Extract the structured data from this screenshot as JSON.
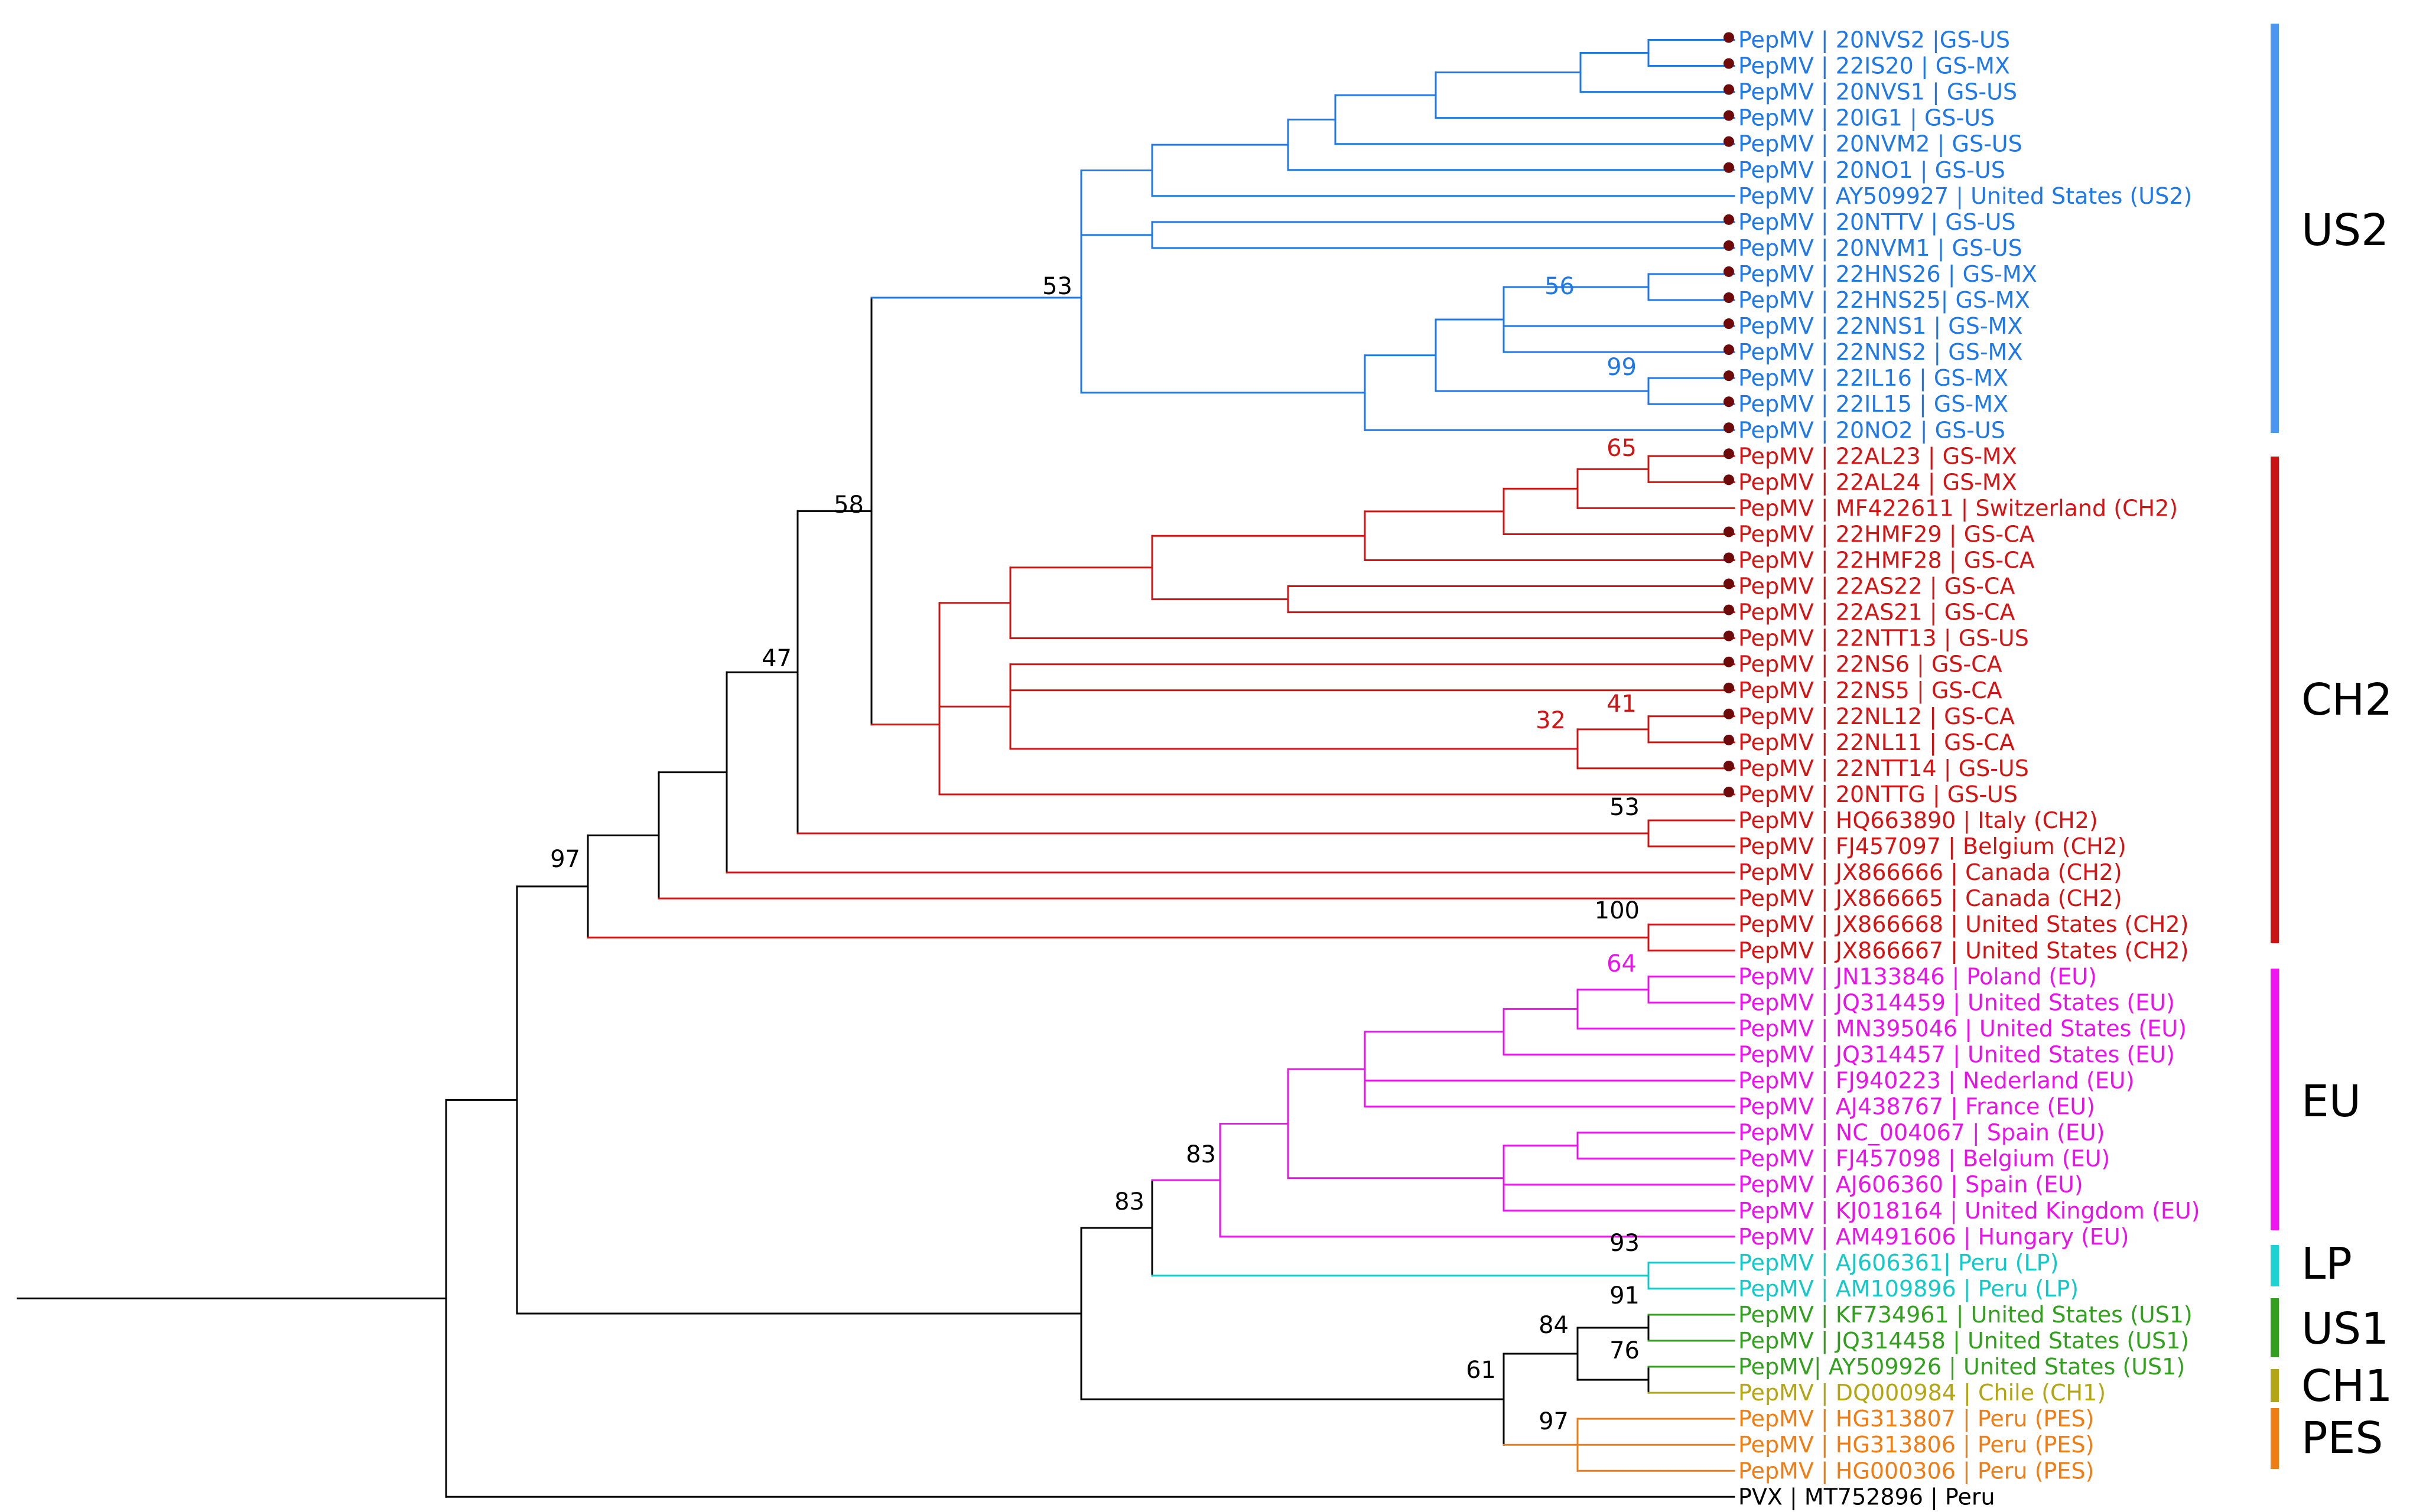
{
  "colors": {
    "us2": "#1e78e6",
    "ch2": "#d21414",
    "eu": "#e614e6",
    "lp": "#14c8c8",
    "us1": "#32a01e",
    "ch1": "#b4a514",
    "pes": "#f07d14",
    "other": "#000000",
    "dot": "#6e0a0a",
    "us2_bar": "#4b96f0",
    "ch2_bar": "#c81414",
    "eu_bar": "#f014f0",
    "lp_bar": "#1ed2d2",
    "us1_bar": "#32a01e",
    "ch1_bar": "#b4a514",
    "pes_bar": "#f07d14"
  },
  "leaves": [
    {
      "text": "PepMV | 20NVS2 |GS-US",
      "color": "us2",
      "dot": true
    },
    {
      "text": "PepMV | 22IS20 | GS-MX",
      "color": "us2",
      "dot": true
    },
    {
      "text": "PepMV | 20NVS1 | GS-US",
      "color": "us2",
      "dot": true
    },
    {
      "text": "PepMV | 20IG1 | GS-US",
      "color": "us2",
      "dot": true
    },
    {
      "text": "PepMV | 20NVM2 | GS-US",
      "color": "us2",
      "dot": true
    },
    {
      "text": "PepMV | 20NO1 | GS-US",
      "color": "us2",
      "dot": true
    },
    {
      "text": "PepMV | AY509927 | United States (US2)",
      "color": "us2",
      "dot": false
    },
    {
      "text": "PepMV | 20NTTV | GS-US",
      "color": "us2",
      "dot": true
    },
    {
      "text": "PepMV | 20NVM1 | GS-US",
      "color": "us2",
      "dot": true
    },
    {
      "text": "PepMV | 22HNS26 | GS-MX",
      "color": "us2",
      "dot": true
    },
    {
      "text": "PepMV | 22HNS25| GS-MX",
      "color": "us2",
      "dot": true
    },
    {
      "text": "PepMV | 22NNS1 | GS-MX",
      "color": "us2",
      "dot": true
    },
    {
      "text": "PepMV | 22NNS2 | GS-MX",
      "color": "us2",
      "dot": true
    },
    {
      "text": "PepMV | 22IL16 | GS-MX",
      "color": "us2",
      "dot": true
    },
    {
      "text": "PepMV | 22IL15 | GS-MX",
      "color": "us2",
      "dot": true
    },
    {
      "text": "PepMV | 20NO2 | GS-US",
      "color": "us2",
      "dot": true
    },
    {
      "text": "PepMV | 22AL23 | GS-MX",
      "color": "ch2",
      "dot": true
    },
    {
      "text": "PepMV | 22AL24 | GS-MX",
      "color": "ch2",
      "dot": true
    },
    {
      "text": "PepMV | MF422611 | Switzerland (CH2)",
      "color": "ch2",
      "dot": false
    },
    {
      "text": "PepMV | 22HMF29 | GS-CA",
      "color": "ch2",
      "dot": true
    },
    {
      "text": "PepMV | 22HMF28 | GS-CA",
      "color": "ch2",
      "dot": true
    },
    {
      "text": "PepMV | 22AS22 | GS-CA",
      "color": "ch2",
      "dot": true
    },
    {
      "text": "PepMV | 22AS21 | GS-CA",
      "color": "ch2",
      "dot": true
    },
    {
      "text": "PepMV | 22NTT13 | GS-US",
      "color": "ch2",
      "dot": true
    },
    {
      "text": "PepMV | 22NS6 | GS-CA",
      "color": "ch2",
      "dot": true
    },
    {
      "text": "PepMV | 22NS5 | GS-CA",
      "color": "ch2",
      "dot": true
    },
    {
      "text": "PepMV | 22NL12 | GS-CA",
      "color": "ch2",
      "dot": true
    },
    {
      "text": "PepMV | 22NL11 | GS-CA",
      "color": "ch2",
      "dot": true
    },
    {
      "text": "PepMV | 22NTT14 | GS-US",
      "color": "ch2",
      "dot": true
    },
    {
      "text": "PepMV | 20NTTG | GS-US",
      "color": "ch2",
      "dot": true
    },
    {
      "text": "PepMV | HQ663890 | Italy (CH2)",
      "color": "ch2",
      "dot": false
    },
    {
      "text": "PepMV | FJ457097 | Belgium (CH2)",
      "color": "ch2",
      "dot": false
    },
    {
      "text": "PepMV | JX866666 | Canada (CH2)",
      "color": "ch2",
      "dot": false
    },
    {
      "text": "PepMV | JX866665 | Canada (CH2)",
      "color": "ch2",
      "dot": false
    },
    {
      "text": "PepMV | JX866668 | United States (CH2)",
      "color": "ch2",
      "dot": false
    },
    {
      "text": "PepMV | JX866667 | United States (CH2)",
      "color": "ch2",
      "dot": false
    },
    {
      "text": "PepMV | JN133846 | Poland (EU)",
      "color": "eu",
      "dot": false
    },
    {
      "text": "PepMV | JQ314459 | United States (EU)",
      "color": "eu",
      "dot": false
    },
    {
      "text": "PepMV | MN395046 | United States (EU)",
      "color": "eu",
      "dot": false
    },
    {
      "text": "PepMV | JQ314457 | United States (EU)",
      "color": "eu",
      "dot": false
    },
    {
      "text": "PepMV | FJ940223 | Nederland (EU)",
      "color": "eu",
      "dot": false
    },
    {
      "text": "PepMV | AJ438767 | France (EU)",
      "color": "eu",
      "dot": false
    },
    {
      "text": "PepMV | NC_004067 | Spain (EU)",
      "color": "eu",
      "dot": false
    },
    {
      "text": "PepMV | FJ457098 | Belgium (EU)",
      "color": "eu",
      "dot": false
    },
    {
      "text": "PepMV | AJ606360 | Spain (EU)",
      "color": "eu",
      "dot": false
    },
    {
      "text": "PepMV | KJ018164 | United Kingdom (EU)",
      "color": "eu",
      "dot": false
    },
    {
      "text": "PepMV | AM491606 | Hungary (EU)",
      "color": "eu",
      "dot": false
    },
    {
      "text": "PepMV | AJ606361| Peru (LP)",
      "color": "lp",
      "dot": false
    },
    {
      "text": "PepMV | AM109896 | Peru (LP)",
      "color": "lp",
      "dot": false
    },
    {
      "text": "PepMV | KF734961 | United States (US1)",
      "color": "us1",
      "dot": false
    },
    {
      "text": "PepMV | JQ314458 | United States (US1)",
      "color": "us1",
      "dot": false
    },
    {
      "text": "PepMV| AY509926 | United States (US1)",
      "color": "us1",
      "dot": false
    },
    {
      "text": "PepMV | DQ000984 | Chile (CH1)",
      "color": "ch1",
      "dot": false
    },
    {
      "text": "PepMV | HG313807 | Peru (PES)",
      "color": "pes",
      "dot": false
    },
    {
      "text": "PepMV | HG313806 | Peru (PES)",
      "color": "pes",
      "dot": false
    },
    {
      "text": "PepMV | HG000306 | Peru (PES)",
      "color": "pes",
      "dot": false
    },
    {
      "text": "PVX | MT752896 | Peru",
      "color": "other",
      "dot": false
    }
  ],
  "bootstrap": [
    {
      "value": "53",
      "color": "other"
    },
    {
      "value": "56",
      "color": "us2"
    },
    {
      "value": "99",
      "color": "us2"
    },
    {
      "value": "58",
      "color": "other"
    },
    {
      "value": "65",
      "color": "ch2"
    },
    {
      "value": "47",
      "color": "other"
    },
    {
      "value": "32",
      "color": "ch2"
    },
    {
      "value": "41",
      "color": "ch2"
    },
    {
      "value": "53",
      "color": "other"
    },
    {
      "value": "97",
      "color": "other"
    },
    {
      "value": "100",
      "color": "other"
    },
    {
      "value": "64",
      "color": "eu"
    },
    {
      "value": "83",
      "color": "other"
    },
    {
      "value": "83",
      "color": "other"
    },
    {
      "value": "93",
      "color": "other"
    },
    {
      "value": "91",
      "color": "other"
    },
    {
      "value": "84",
      "color": "other"
    },
    {
      "value": "76",
      "color": "other"
    },
    {
      "value": "61",
      "color": "other"
    },
    {
      "value": "97",
      "color": "other"
    }
  ],
  "clades": [
    {
      "label": "US2",
      "color": "us2_bar"
    },
    {
      "label": "CH2",
      "color": "ch2_bar"
    },
    {
      "label": "EU",
      "color": "eu_bar"
    },
    {
      "label": "LP",
      "color": "lp_bar"
    },
    {
      "label": "US1",
      "color": "us1_bar"
    },
    {
      "label": "CH1",
      "color": "ch1_bar"
    },
    {
      "label": "PES",
      "color": "pes_bar"
    }
  ]
}
